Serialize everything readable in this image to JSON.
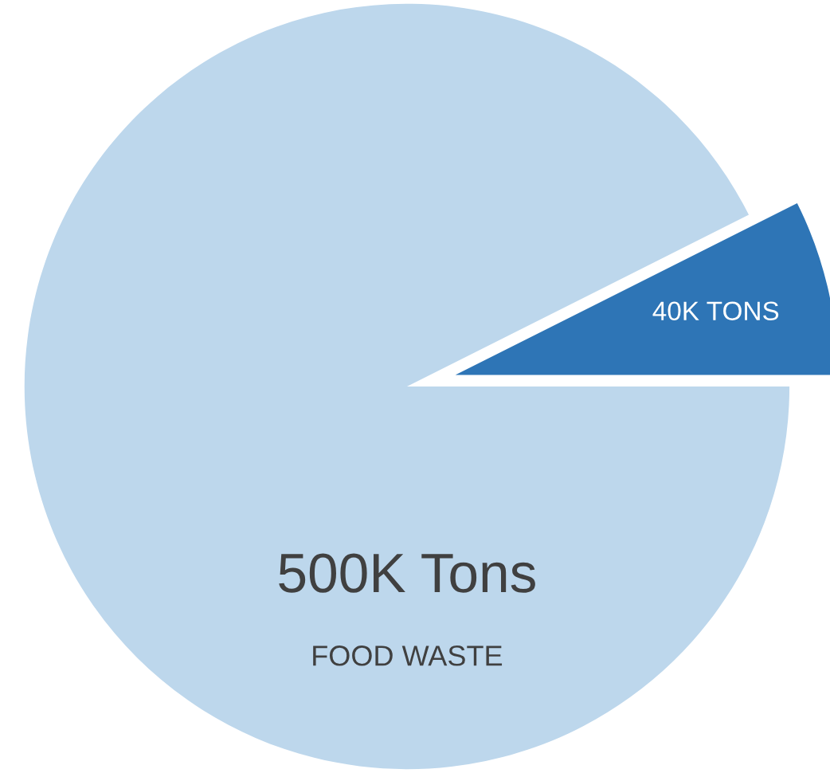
{
  "chart_data": {
    "type": "pie",
    "categories": [
      "FOOD WASTE",
      null
    ],
    "values": [
      500,
      40
    ],
    "colors": [
      "#bdd7ec",
      "#2e75b6"
    ],
    "value_labels": [
      "500K Tons",
      "40K TONS"
    ]
  }
}
